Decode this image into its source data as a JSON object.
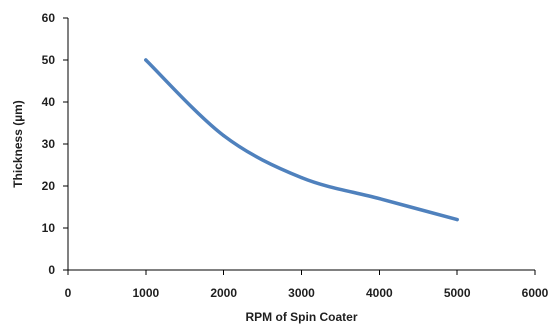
{
  "chart_data": {
    "type": "line",
    "title": "",
    "xlabel": "RPM of Spin Coater",
    "ylabel": "Thickness  (µm)",
    "xlim": [
      0,
      6000
    ],
    "ylim": [
      0,
      60
    ],
    "x_ticks": [
      0,
      1000,
      2000,
      3000,
      4000,
      5000,
      6000
    ],
    "y_ticks": [
      0,
      10,
      20,
      30,
      40,
      50,
      60
    ],
    "x_tick_labels": [
      "0",
      "1000",
      "2000",
      "3000",
      "4000",
      "5000",
      "6000"
    ],
    "y_tick_labels": [
      "0",
      "10",
      "20",
      "30",
      "40",
      "50",
      "60"
    ],
    "grid": false,
    "legend": "none",
    "smooth": true,
    "series": [
      {
        "color": "#4f81bd",
        "x": [
          1000,
          2000,
          3000,
          4000,
          5000
        ],
        "y": [
          50,
          32,
          22,
          17,
          12
        ]
      }
    ]
  }
}
